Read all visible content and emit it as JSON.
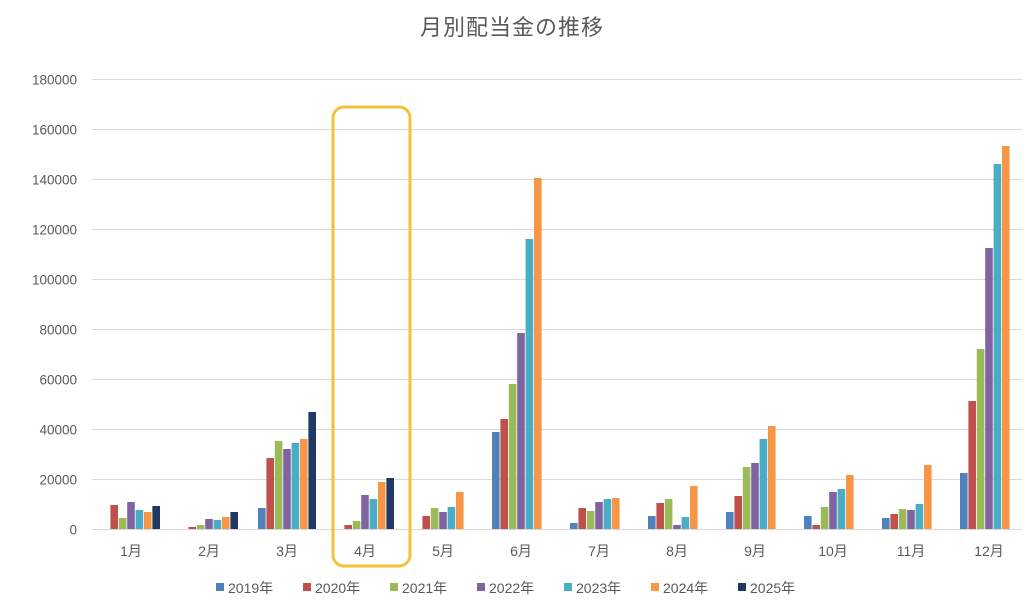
{
  "chart_data": {
    "type": "bar",
    "title": "月別配当金の推移",
    "xlabel": "",
    "ylabel": "",
    "categories": [
      "1月",
      "2月",
      "3月",
      "4月",
      "5月",
      "6月",
      "7月",
      "8月",
      "9月",
      "10月",
      "11月",
      "12月"
    ],
    "ylim": [
      0,
      180000
    ],
    "yticks": [
      0,
      20000,
      40000,
      60000,
      80000,
      100000,
      120000,
      140000,
      160000,
      180000
    ],
    "grid": true,
    "legend_position": "bottom",
    "series": [
      {
        "name": "2019年",
        "color": "#4f81bd",
        "values": [
          0,
          0,
          8400,
          0,
          0,
          38800,
          2400,
          5200,
          6800,
          5200,
          4400,
          22400
        ]
      },
      {
        "name": "2020年",
        "color": "#c0504d",
        "values": [
          9600,
          800,
          28400,
          1600,
          5200,
          44000,
          8400,
          10400,
          13200,
          1600,
          6000,
          51200
        ]
      },
      {
        "name": "2021年",
        "color": "#9bbb59",
        "values": [
          4400,
          1600,
          35200,
          3200,
          8400,
          58000,
          7200,
          12000,
          24800,
          8800,
          8000,
          72000
        ]
      },
      {
        "name": "2022年",
        "color": "#8064a2",
        "values": [
          10800,
          4000,
          32000,
          13600,
          6800,
          78400,
          10800,
          1600,
          26400,
          14800,
          7600,
          112400
        ]
      },
      {
        "name": "2023年",
        "color": "#4bacc6",
        "values": [
          7600,
          3600,
          34400,
          12000,
          8800,
          116000,
          12000,
          4800,
          36000,
          16000,
          10000,
          146000
        ]
      },
      {
        "name": "2024年",
        "color": "#f79646",
        "values": [
          6800,
          4800,
          36000,
          18800,
          14800,
          140400,
          12400,
          17200,
          41200,
          21600,
          25600,
          153200
        ]
      },
      {
        "name": "2025年",
        "color": "#1f3864",
        "values": [
          9200,
          6800,
          46800,
          20400,
          null,
          null,
          null,
          null,
          null,
          null,
          null,
          null
        ]
      }
    ],
    "highlight": {
      "category_index": 3,
      "color": "#f2c23a"
    }
  }
}
